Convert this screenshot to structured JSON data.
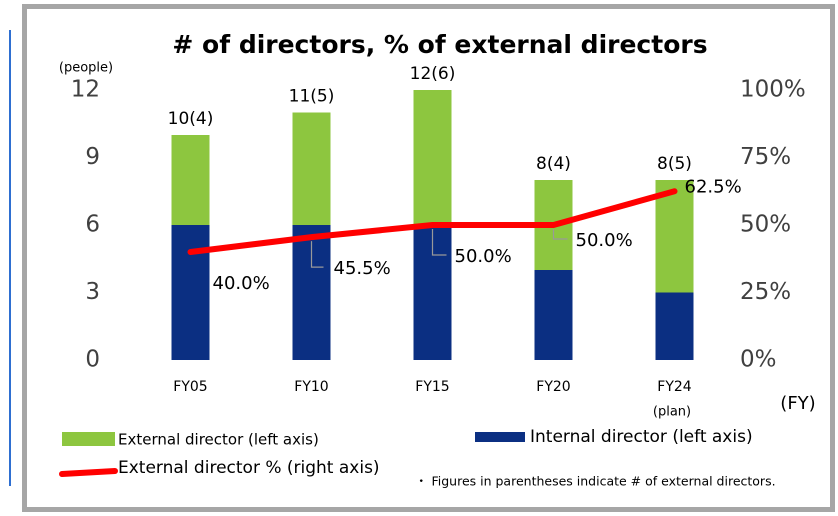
{
  "chart_data": {
    "type": "bar",
    "title": "# of directors, % of external directors",
    "y_axis_label": "(people)",
    "x_axis_label": "(FY)",
    "x_note": "(plan)",
    "note": "・ Figures in parentheses indicate # of external directors.",
    "categories": [
      "FY05",
      "FY10",
      "FY15",
      "FY20",
      "FY24"
    ],
    "series": [
      {
        "name": "Internal director (left axis)",
        "color": "#0b2f82",
        "values": [
          6,
          6,
          6,
          4,
          3
        ]
      },
      {
        "name": "External director (left axis)",
        "color": "#8dc63f",
        "values": [
          4,
          5,
          6,
          4,
          5
        ]
      },
      {
        "name": "External director % (right axis)",
        "color": "#ff0000",
        "axis": "y2",
        "type": "line",
        "values": [
          40.0,
          45.5,
          50.0,
          50.0,
          62.5
        ],
        "value_labels": [
          "40.0%",
          "45.5%",
          "50.0%",
          "50.0%",
          "62.5%"
        ]
      }
    ],
    "total_labels": [
      "10(4)",
      "11(5)",
      "12(6)",
      "8(4)",
      "8(5)"
    ],
    "ylim": [
      0,
      12
    ],
    "yticks": [
      0,
      3,
      6,
      9,
      12
    ],
    "y2lim": [
      0,
      100
    ],
    "y2ticks": [
      {
        "value": 0,
        "label": "0%"
      },
      {
        "value": 25,
        "label": "25%"
      },
      {
        "value": 50,
        "label": "50%"
      },
      {
        "value": 75,
        "label": "75%"
      },
      {
        "value": 100,
        "label": "100%"
      }
    ]
  }
}
